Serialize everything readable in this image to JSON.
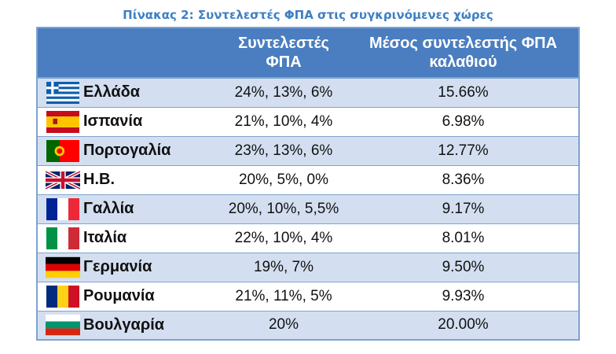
{
  "caption": "Πίνακας 2: Συντελεστές ΦΠΑ στις συγκρινόμενες χώρες",
  "headers": {
    "country": "",
    "rates": "Συντελεστές ΦΠΑ",
    "average": "Μέσος συντελεστής ΦΠΑ καλαθιού"
  },
  "rows": [
    {
      "country": "Ελλάδα",
      "rates": "24%, 13%, 6%",
      "average": "15.66%",
      "flag_icon": "greece-flag-icon"
    },
    {
      "country": "Ισπανία",
      "rates": "21%, 10%, 4%",
      "average": "6.98%",
      "flag_icon": "spain-flag-icon"
    },
    {
      "country": "Πορτογαλία",
      "rates": "23%, 13%, 6%",
      "average": "12.77%",
      "flag_icon": "portugal-flag-icon"
    },
    {
      "country": "Η.Β.",
      "rates": "20%, 5%, 0%",
      "average": "8.36%",
      "flag_icon": "uk-flag-icon"
    },
    {
      "country": "Γαλλία",
      "rates": "20%, 10%, 5,5%",
      "average": "9.17%",
      "flag_icon": "france-flag-icon"
    },
    {
      "country": "Ιταλία",
      "rates": "22%, 10%, 4%",
      "average": "8.01%",
      "flag_icon": "italy-flag-icon"
    },
    {
      "country": "Γερμανία",
      "rates": "19%, 7%",
      "average": "9.50%",
      "flag_icon": "germany-flag-icon"
    },
    {
      "country": "Ρουμανία",
      "rates": "21%, 11%, 5%",
      "average": "9.93%",
      "flag_icon": "romania-flag-icon"
    },
    {
      "country": "Βουλγαρία",
      "rates": "20%",
      "average": "20.00%",
      "flag_icon": "bulgaria-flag-icon"
    }
  ],
  "colors": {
    "caption": "#3d7fc4",
    "header_bg": "#4a7ec0",
    "stripe": "#d3dff0",
    "border": "#7fa3cf"
  }
}
